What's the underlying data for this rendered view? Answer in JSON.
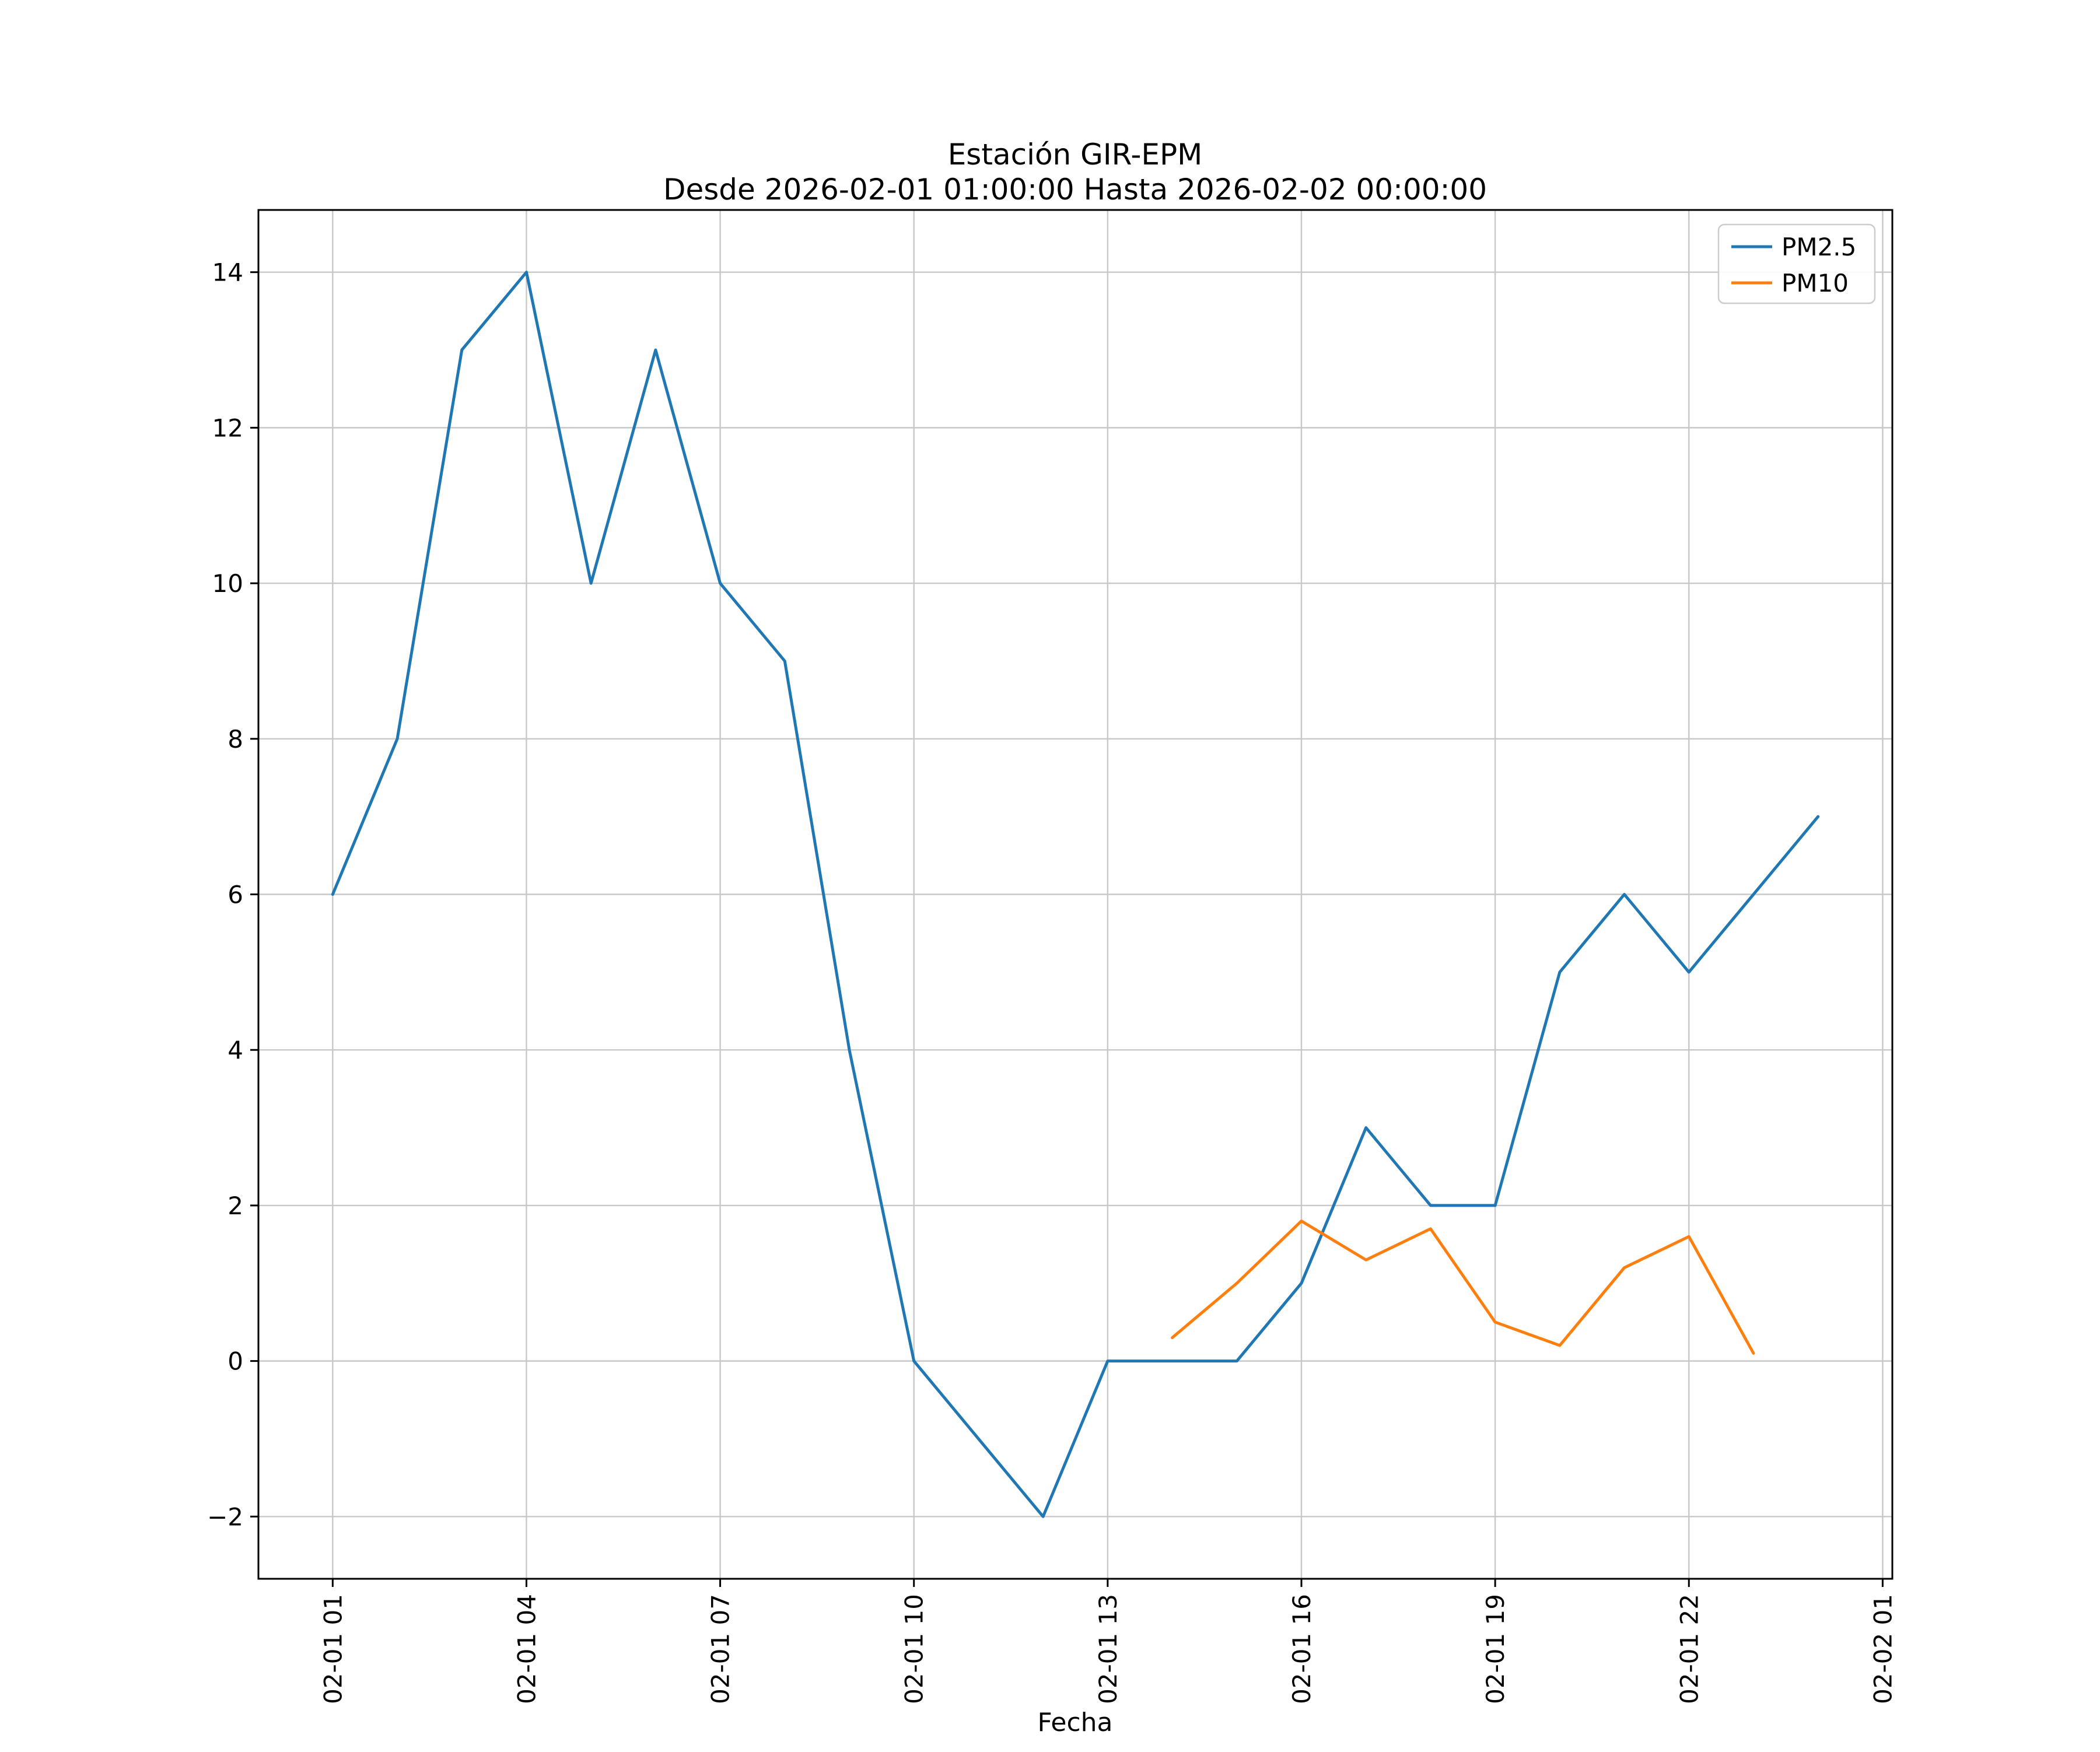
{
  "figure": {
    "background": "#ffffff"
  },
  "chart_data": {
    "type": "line",
    "title": "Estación GIR-EPM",
    "subtitle": "Desde 2026-02-01 01:00:00 Hasta 2026-02-02 00:00:00",
    "xlabel": "Fecha",
    "ylabel": "",
    "grid": true,
    "grid_color": "#c8c8c8",
    "axes_color": "#000000",
    "legend": {
      "position": "upper right",
      "entries": [
        "PM2.5",
        "PM10"
      ]
    },
    "x_unit": "hours after 2026-02-01 00:00",
    "xlim": [
      -0.15,
      25.15
    ],
    "ylim": [
      -2.8,
      14.8
    ],
    "x_ticks": [
      {
        "hour": 1,
        "label": "02-01 01"
      },
      {
        "hour": 4,
        "label": "02-01 04"
      },
      {
        "hour": 7,
        "label": "02-01 07"
      },
      {
        "hour": 10,
        "label": "02-01 10"
      },
      {
        "hour": 13,
        "label": "02-01 13"
      },
      {
        "hour": 16,
        "label": "02-01 16"
      },
      {
        "hour": 19,
        "label": "02-01 19"
      },
      {
        "hour": 22,
        "label": "02-01 22"
      },
      {
        "hour": 25,
        "label": "02-02 01"
      }
    ],
    "y_ticks": [
      -2,
      0,
      2,
      4,
      6,
      8,
      10,
      12,
      14
    ],
    "series": [
      {
        "name": "PM2.5",
        "color": "#1f77b4",
        "x_hours": [
          1,
          2,
          3,
          4,
          5,
          6,
          7,
          8,
          9,
          10,
          11,
          12,
          13,
          14,
          15,
          16,
          17,
          18,
          19,
          20,
          21,
          22,
          23,
          24
        ],
        "values": [
          6,
          8,
          13,
          14,
          10,
          13,
          10,
          9,
          4,
          0,
          -1,
          -2,
          0,
          0,
          0,
          1,
          3,
          2,
          2,
          5,
          6,
          5,
          6,
          7
        ]
      },
      {
        "name": "PM10",
        "color": "#ff7f0e",
        "x_hours": [
          14,
          15,
          16,
          17,
          18,
          19,
          20,
          21,
          22,
          23
        ],
        "values": [
          0.3,
          1.0,
          1.8,
          1.3,
          1.7,
          0.5,
          0.2,
          1.2,
          1.6,
          0.1
        ]
      }
    ]
  }
}
